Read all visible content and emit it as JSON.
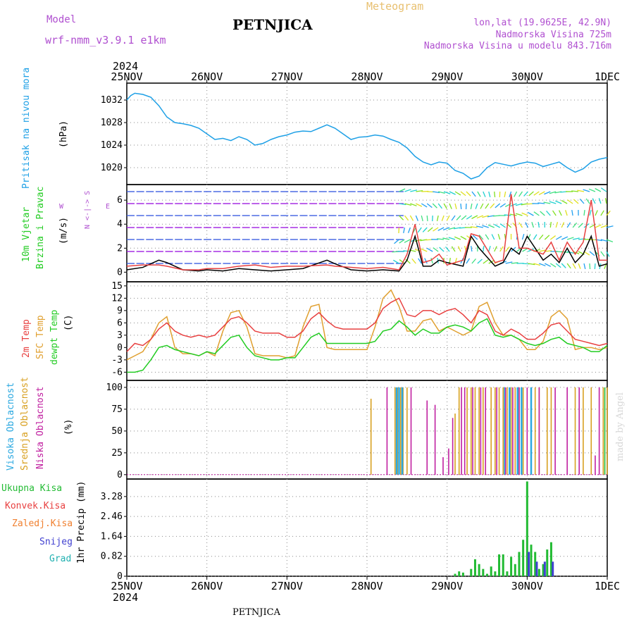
{
  "header": {
    "model_label": "Model",
    "model_name": "wrf-nmm_v3.9.1  e1km",
    "station": "PETNJICA",
    "title": "Meteogram",
    "coords": "lon,lat (19.9625E, 42.9N)",
    "elevation": "Nadmorska Visina 725m",
    "model_elevation": "Nadmorska Visina u modelu 843.716m",
    "footer_station": "PETNJICA",
    "credit": "made by Angel"
  },
  "colors": {
    "pressure": "#1ea0e6",
    "t2m": "#e84040",
    "sfc": "#e0a030",
    "dewpt": "#22cc22",
    "cloud_high": "#2aa8e0",
    "cloud_mid": "#d8a020",
    "cloud_low": "#c020a0",
    "precip_total": "#22bb33",
    "precip_conv": "#e84040",
    "precip_frozen": "#f08030",
    "snow": "#4040d0",
    "hail": "#20b0b0",
    "wind_calm": "#a020e0"
  },
  "chart_data": [
    {
      "type": "line",
      "id": "pressure",
      "ylabel_a": "Pritisak na nivou mora",
      "ylabel_b": "(hPa)",
      "yticks": [
        1020,
        1024,
        1028,
        1032
      ],
      "ylim": [
        1017,
        1035
      ],
      "x_dates": [
        "25NOV",
        "26NOV",
        "27NOV",
        "28NOV",
        "29NOV",
        "30NOV",
        "1DEC"
      ],
      "year": "2024",
      "grid": true,
      "series": [
        {
          "x": [
            0,
            0.05,
            0.1,
            0.2,
            0.3,
            0.4,
            0.5,
            0.6,
            0.7,
            0.8,
            0.9,
            1.0,
            1.1,
            1.2,
            1.3,
            1.4,
            1.5,
            1.6,
            1.7,
            1.8,
            1.9,
            2.0,
            2.1,
            2.2,
            2.3,
            2.4,
            2.5,
            2.6,
            2.7,
            2.8,
            2.9,
            3.0,
            3.1,
            3.2,
            3.3,
            3.4,
            3.5,
            3.6,
            3.7,
            3.8,
            3.9,
            4.0,
            4.1,
            4.2,
            4.3,
            4.4,
            4.5,
            4.6,
            4.7,
            4.8,
            4.9,
            5.0,
            5.1,
            5.2,
            5.3,
            5.4,
            5.5,
            5.6,
            5.7,
            5.8,
            5.9,
            6.0
          ],
          "values": [
            1032,
            1032.8,
            1033.2,
            1033,
            1032.5,
            1031,
            1029,
            1028,
            1027.8,
            1027.5,
            1027,
            1026,
            1025,
            1025.2,
            1024.8,
            1025.5,
            1025,
            1024,
            1024.3,
            1025,
            1025.5,
            1025.8,
            1026.3,
            1026.5,
            1026.4,
            1027,
            1027.6,
            1027,
            1026,
            1025,
            1025.4,
            1025.5,
            1025.8,
            1025.6,
            1025,
            1024.5,
            1023.5,
            1022,
            1021,
            1020.5,
            1021,
            1020.8,
            1019.5,
            1019,
            1018,
            1018.5,
            1020,
            1020.9,
            1020.6,
            1020.3,
            1020.7,
            1021,
            1020.8,
            1020.2,
            1020.6,
            1021,
            1020,
            1019.2,
            1019.8,
            1021,
            1021.5,
            1021.8
          ]
        }
      ]
    },
    {
      "type": "wind",
      "id": "wind",
      "ylabel_a": "10m Vjetar",
      "ylabel_b": "Brzina i Pravac",
      "ylabel_c": "(m/s)",
      "compass": "N <-|-> S",
      "compass_w": "W",
      "compass_e": "E",
      "yticks": [
        0,
        2,
        4,
        6
      ],
      "ylim": [
        -0.8,
        7.3
      ],
      "series": [
        {
          "name": "speed",
          "x": [
            0,
            0.2,
            0.4,
            0.5,
            0.7,
            0.9,
            1.0,
            1.2,
            1.4,
            1.6,
            1.8,
            2.0,
            2.2,
            2.5,
            2.6,
            2.8,
            3.0,
            3.2,
            3.4,
            3.5,
            3.6,
            3.7,
            3.8,
            3.9,
            4.0,
            4.2,
            4.3,
            4.4,
            4.6,
            4.7,
            4.8,
            4.9,
            5.0,
            5.2,
            5.3,
            5.4,
            5.5,
            5.6,
            5.7,
            5.8,
            5.9,
            6.0
          ],
          "values": [
            0.2,
            0.4,
            1,
            0.8,
            0.2,
            0.1,
            0.2,
            0.1,
            0.3,
            0.2,
            0.1,
            0.2,
            0.3,
            1,
            0.7,
            0.2,
            0.1,
            0.2,
            0.1,
            1,
            3,
            0.5,
            0.5,
            1,
            0.8,
            0.5,
            3,
            2,
            0.5,
            0.8,
            2,
            1.5,
            3,
            1,
            1.5,
            0.8,
            2,
            0.8,
            1.5,
            3,
            0.5,
            0.7
          ]
        },
        {
          "name": "gust",
          "x": [
            0,
            0.2,
            0.4,
            0.5,
            0.7,
            0.9,
            1.0,
            1.2,
            1.4,
            1.6,
            1.8,
            2.0,
            2.2,
            2.5,
            2.6,
            2.8,
            3.0,
            3.2,
            3.4,
            3.5,
            3.6,
            3.7,
            3.8,
            3.9,
            4.0,
            4.2,
            4.3,
            4.4,
            4.6,
            4.7,
            4.8,
            4.9,
            5.0,
            5.2,
            5.3,
            5.4,
            5.5,
            5.6,
            5.7,
            5.8,
            5.9,
            6.0
          ],
          "values": [
            0.5,
            0.6,
            0.6,
            0.5,
            0.2,
            0.2,
            0.3,
            0.3,
            0.5,
            0.6,
            0.4,
            0.5,
            0.5,
            0.6,
            0.5,
            0.4,
            0.3,
            0.4,
            0.2,
            1.5,
            4,
            0.8,
            1,
            1.5,
            0.6,
            1,
            3.2,
            3,
            0.8,
            1,
            6.5,
            2,
            2,
            1.5,
            2.5,
            1,
            2.5,
            1.5,
            2.5,
            6,
            1,
            1
          ]
        }
      ]
    },
    {
      "type": "line",
      "id": "temperature",
      "ylabel_a": "2m Temp",
      "ylabel_b": "SFC Temp",
      "ylabel_c": "dewpt Temp",
      "ylabel_d": "(C)",
      "yticks": [
        -6,
        -3,
        0,
        3,
        6,
        9,
        12,
        15
      ],
      "ylim": [
        -8,
        16
      ],
      "grid": true,
      "series": [
        {
          "name": "2m Temp",
          "x": [
            0,
            0.1,
            0.2,
            0.3,
            0.4,
            0.5,
            0.6,
            0.7,
            0.8,
            0.9,
            1.0,
            1.1,
            1.2,
            1.3,
            1.4,
            1.5,
            1.6,
            1.7,
            1.8,
            1.9,
            2.0,
            2.1,
            2.2,
            2.3,
            2.4,
            2.5,
            2.6,
            2.7,
            2.8,
            2.9,
            3.0,
            3.1,
            3.2,
            3.3,
            3.4,
            3.5,
            3.6,
            3.7,
            3.8,
            3.9,
            4.0,
            4.1,
            4.2,
            4.3,
            4.4,
            4.5,
            4.6,
            4.7,
            4.8,
            4.9,
            5.0,
            5.1,
            5.2,
            5.3,
            5.4,
            5.5,
            5.6,
            5.7,
            5.8,
            5.9,
            6.0
          ],
          "values": [
            -1,
            1,
            0.5,
            2,
            4.5,
            6,
            4,
            3,
            2.5,
            3,
            2.5,
            3,
            5,
            7,
            7.5,
            6,
            4,
            3.5,
            3.5,
            3.5,
            2.5,
            2.5,
            4,
            7,
            8.5,
            6.5,
            5,
            4.5,
            4.5,
            4.5,
            4.5,
            6,
            9.5,
            11,
            12,
            8,
            7.5,
            9,
            9,
            8,
            9,
            9.5,
            8,
            6,
            9,
            8,
            4,
            3,
            4.5,
            3.5,
            2,
            2,
            3.5,
            5.5,
            6,
            4,
            2,
            1.5,
            1,
            0.5,
            1
          ]
        },
        {
          "name": "SFC Temp",
          "x": [
            0,
            0.1,
            0.2,
            0.3,
            0.4,
            0.5,
            0.6,
            0.7,
            0.8,
            0.9,
            1.0,
            1.1,
            1.2,
            1.3,
            1.4,
            1.5,
            1.6,
            1.7,
            1.8,
            1.9,
            2.0,
            2.1,
            2.2,
            2.3,
            2.4,
            2.5,
            2.6,
            2.7,
            2.8,
            2.9,
            3.0,
            3.1,
            3.2,
            3.3,
            3.4,
            3.5,
            3.6,
            3.7,
            3.8,
            3.9,
            4.0,
            4.1,
            4.2,
            4.3,
            4.4,
            4.5,
            4.6,
            4.7,
            4.8,
            4.9,
            5.0,
            5.1,
            5.2,
            5.3,
            5.4,
            5.5,
            5.6,
            5.7,
            5.8,
            5.9,
            6.0
          ],
          "values": [
            -3,
            -2,
            -1,
            2,
            6,
            7.5,
            0,
            -1.5,
            -1.5,
            -2,
            -1,
            -2,
            4,
            8.5,
            9,
            5,
            -1.5,
            -2,
            -2,
            -2,
            -2.5,
            -2,
            5,
            10,
            10.5,
            0,
            -0.5,
            -0.5,
            -0.5,
            -0.5,
            -0.5,
            5,
            12,
            14,
            10,
            4,
            4,
            6.5,
            7,
            4,
            5,
            4,
            3,
            4,
            10,
            11,
            6,
            3,
            3,
            2,
            -0.5,
            -0.5,
            1.5,
            7.5,
            9,
            7,
            -0.5,
            0,
            0,
            -0.5,
            0
          ]
        },
        {
          "name": "dewpt Temp",
          "x": [
            0,
            0.1,
            0.2,
            0.3,
            0.4,
            0.5,
            0.6,
            0.7,
            0.8,
            0.9,
            1.0,
            1.1,
            1.2,
            1.3,
            1.4,
            1.5,
            1.6,
            1.7,
            1.8,
            1.9,
            2.0,
            2.1,
            2.2,
            2.3,
            2.4,
            2.5,
            2.6,
            2.7,
            2.8,
            2.9,
            3.0,
            3.1,
            3.2,
            3.3,
            3.4,
            3.5,
            3.6,
            3.7,
            3.8,
            3.9,
            4.0,
            4.1,
            4.2,
            4.3,
            4.4,
            4.5,
            4.6,
            4.7,
            4.8,
            4.9,
            5.0,
            5.1,
            5.2,
            5.3,
            5.4,
            5.5,
            5.6,
            5.7,
            5.8,
            5.9,
            6.0
          ],
          "values": [
            -6,
            -6,
            -5.5,
            -3,
            0,
            0.5,
            -0.5,
            -1,
            -1.5,
            -2,
            -1,
            -1.5,
            0.5,
            2.5,
            3,
            0,
            -2,
            -2.5,
            -3,
            -3,
            -2.5,
            -2.5,
            0,
            2.5,
            3.5,
            1,
            1,
            1,
            1,
            1,
            1,
            1.5,
            4,
            4.5,
            6.5,
            5,
            3,
            4.5,
            3.5,
            3.5,
            5,
            5.5,
            5,
            4,
            6,
            7,
            3,
            2.5,
            3,
            2,
            1,
            0.5,
            1,
            2,
            2.5,
            1,
            0.5,
            0,
            -1,
            -1,
            0.5
          ]
        }
      ]
    },
    {
      "type": "bar",
      "id": "cloud",
      "ylabel_a": "Visoka Oblacnost",
      "ylabel_b": "Srednja Oblacnost",
      "ylabel_c": "Niska  Oblacnost",
      "ylabel_d": "(%)",
      "yticks": [
        0,
        25,
        50,
        75,
        100
      ],
      "ylim": [
        -5,
        108
      ],
      "grid": true,
      "series": [
        {
          "name": "Srednja Oblacnost",
          "x": [
            3.05,
            3.35,
            3.38,
            3.42,
            3.45,
            3.5,
            4.1,
            4.15,
            4.25,
            4.3,
            4.35,
            4.4,
            4.45,
            4.55,
            4.6,
            4.65,
            4.7,
            4.75,
            4.8,
            4.85,
            4.9,
            4.95,
            5.05,
            5.1,
            5.15,
            5.25,
            5.3,
            5.6,
            5.7,
            5.8,
            5.95,
            6.0
          ],
          "values": [
            87,
            100,
            100,
            100,
            100,
            100,
            70,
            100,
            100,
            100,
            100,
            100,
            100,
            100,
            100,
            100,
            100,
            100,
            100,
            100,
            100,
            100,
            100,
            100,
            100,
            100,
            100,
            100,
            100,
            100,
            100,
            100
          ]
        },
        {
          "name": "Visoka Oblacnost",
          "x": [
            3.37,
            3.4,
            3.44,
            4.72,
            4.78,
            4.88,
            4.93,
            5.05
          ],
          "values": [
            100,
            100,
            100,
            100,
            100,
            100,
            100,
            100
          ]
        },
        {
          "name": "Niska  Oblacnost",
          "x": [
            3.25,
            3.55,
            3.75,
            3.85,
            3.95,
            4.02,
            4.07,
            4.18,
            4.22,
            4.32,
            4.42,
            4.48,
            4.62,
            4.73,
            4.82,
            4.9,
            5.0,
            5.15,
            5.35,
            5.5,
            5.65,
            5.85,
            5.9
          ],
          "values": [
            100,
            100,
            85,
            80,
            20,
            30,
            65,
            100,
            100,
            100,
            100,
            100,
            100,
            100,
            100,
            100,
            100,
            100,
            100,
            100,
            100,
            22,
            100
          ]
        },
        {
          "name": "green",
          "x": [
            5.97
          ],
          "values": [
            100
          ]
        }
      ]
    },
    {
      "type": "bar",
      "id": "precip",
      "legend": [
        "Ukupna  Kisa",
        "Konvek.Kisa",
        "Zaledj.Kisa",
        "Snijeg",
        "Grad"
      ],
      "ylabel": "1hr Precip (mm)",
      "yticks": [
        0,
        0.82,
        1.64,
        2.46,
        3.28
      ],
      "yticklabels": [
        "0",
        "0.82",
        "1.64",
        "2.46",
        "3.28"
      ],
      "ylim": [
        0,
        4.0
      ],
      "grid": true,
      "series": [
        {
          "name": "Ukupna  Kisa",
          "x": [
            4.1,
            4.15,
            4.2,
            4.3,
            4.35,
            4.4,
            4.45,
            4.5,
            4.55,
            4.6,
            4.65,
            4.7,
            4.75,
            4.8,
            4.85,
            4.9,
            4.95,
            5.0,
            5.05,
            5.1,
            5.15,
            5.2,
            5.25,
            5.3
          ],
          "values": [
            0.1,
            0.2,
            0.15,
            0.3,
            0.7,
            0.5,
            0.3,
            0.1,
            0.4,
            0.2,
            0.9,
            0.9,
            0.2,
            0.8,
            0.5,
            1.0,
            1.5,
            3.9,
            1.3,
            1.0,
            0.3,
            0.5,
            1.1,
            1.4
          ]
        },
        {
          "name": "Snijeg",
          "x": [
            5.02,
            5.12,
            5.22,
            5.32
          ],
          "values": [
            1.0,
            0.6,
            0.6,
            0.6
          ]
        }
      ]
    }
  ]
}
